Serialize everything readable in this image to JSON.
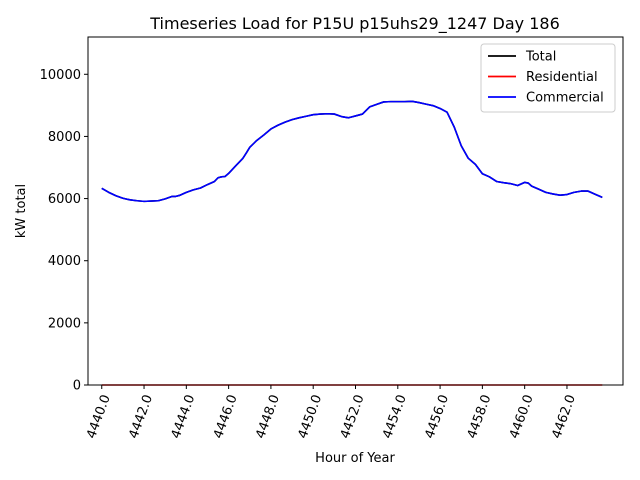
{
  "chart_data": {
    "type": "line",
    "title": "Timeseries Load for P15U p15uhs29_1247  Day 186",
    "xlabel": "Hour of Year",
    "ylabel": "kW total",
    "xlim": [
      4439.35,
      4464.65
    ],
    "ylim": [
      0,
      11200
    ],
    "xticks": [
      4440,
      4442,
      4444,
      4446,
      4448,
      4450,
      4452,
      4454,
      4456,
      4458,
      4460,
      4462
    ],
    "xtick_labels": [
      "4440.0",
      "4442.0",
      "4444.0",
      "4446.0",
      "4448.0",
      "4450.0",
      "4452.0",
      "4454.0",
      "4456.0",
      "4458.0",
      "4460.0",
      "4462.0"
    ],
    "yticks": [
      0,
      2000,
      4000,
      6000,
      8000,
      10000
    ],
    "ytick_labels": [
      "0",
      "2000",
      "4000",
      "6000",
      "8000",
      "10000"
    ],
    "grid": false,
    "legend_position": "top-right",
    "x": [
      4440.0,
      4440.33,
      4440.67,
      4441.0,
      4441.33,
      4441.67,
      4442.0,
      4442.33,
      4442.67,
      4443.0,
      4443.33,
      4443.5,
      4443.67,
      4444.0,
      4444.33,
      4444.67,
      4445.0,
      4445.33,
      4445.5,
      4445.67,
      4445.83,
      4446.0,
      4446.33,
      4446.67,
      4446.83,
      4447.0,
      4447.33,
      4447.67,
      4448.0,
      4448.33,
      4448.67,
      4449.0,
      4449.33,
      4449.67,
      4450.0,
      4450.33,
      4450.67,
      4451.0,
      4451.33,
      4451.67,
      4451.83,
      4452.0,
      4452.33,
      4452.67,
      4453.0,
      4453.33,
      4453.67,
      4454.0,
      4454.33,
      4454.67,
      4455.0,
      4455.33,
      4455.67,
      4456.0,
      4456.33,
      4456.67,
      4457.0,
      4457.33,
      4457.67,
      4458.0,
      4458.33,
      4458.67,
      4459.0,
      4459.33,
      4459.67,
      4460.0,
      4460.17,
      4460.33,
      4460.67,
      4461.0,
      4461.33,
      4461.67,
      4462.0,
      4462.33,
      4462.67,
      4463.0,
      4463.33,
      4463.67
    ],
    "series": [
      {
        "name": "Total",
        "color": "#000000",
        "values": [
          6330,
          6200,
          6090,
          6010,
          5960,
          5930,
          5910,
          5920,
          5930,
          5990,
          6070,
          6070,
          6100,
          6200,
          6280,
          6340,
          6450,
          6550,
          6670,
          6700,
          6710,
          6810,
          7050,
          7290,
          7460,
          7650,
          7870,
          8050,
          8240,
          8360,
          8460,
          8540,
          8600,
          8650,
          8700,
          8720,
          8730,
          8720,
          8640,
          8600,
          8630,
          8660,
          8720,
          8950,
          9030,
          9110,
          9120,
          9120,
          9120,
          9130,
          9090,
          9040,
          8990,
          8900,
          8780,
          8300,
          7700,
          7300,
          7100,
          6800,
          6700,
          6550,
          6510,
          6480,
          6420,
          6520,
          6500,
          6400,
          6300,
          6200,
          6150,
          6110,
          6130,
          6200,
          6240,
          6240,
          6140,
          6040
        ]
      },
      {
        "name": "Residential",
        "color": "#ff0000",
        "values": [
          0,
          0,
          0,
          0,
          0,
          0,
          0,
          0,
          0,
          0,
          0,
          0,
          0,
          0,
          0,
          0,
          0,
          0,
          0,
          0,
          0,
          0,
          0,
          0,
          0,
          0,
          0,
          0,
          0,
          0,
          0,
          0,
          0,
          0,
          0,
          0,
          0,
          0,
          0,
          0,
          0,
          0,
          0,
          0,
          0,
          0,
          0,
          0,
          0,
          0,
          0,
          0,
          0,
          0,
          0,
          0,
          0,
          0,
          0,
          0,
          0,
          0,
          0,
          0,
          0,
          0,
          0,
          0,
          0,
          0,
          0,
          0,
          0,
          0,
          0,
          0,
          0,
          0
        ]
      },
      {
        "name": "Commercial",
        "color": "#0000ff",
        "values": [
          6330,
          6200,
          6090,
          6010,
          5960,
          5930,
          5910,
          5920,
          5930,
          5990,
          6070,
          6070,
          6100,
          6200,
          6280,
          6340,
          6450,
          6550,
          6670,
          6700,
          6710,
          6810,
          7050,
          7290,
          7460,
          7650,
          7870,
          8050,
          8240,
          8360,
          8460,
          8540,
          8600,
          8650,
          8700,
          8720,
          8730,
          8720,
          8640,
          8600,
          8630,
          8660,
          8720,
          8950,
          9030,
          9110,
          9120,
          9120,
          9120,
          9130,
          9090,
          9040,
          8990,
          8900,
          8780,
          8300,
          7700,
          7300,
          7100,
          6800,
          6700,
          6550,
          6510,
          6480,
          6420,
          6520,
          6500,
          6400,
          6300,
          6200,
          6150,
          6110,
          6130,
          6200,
          6240,
          6240,
          6140,
          6040
        ]
      }
    ]
  }
}
